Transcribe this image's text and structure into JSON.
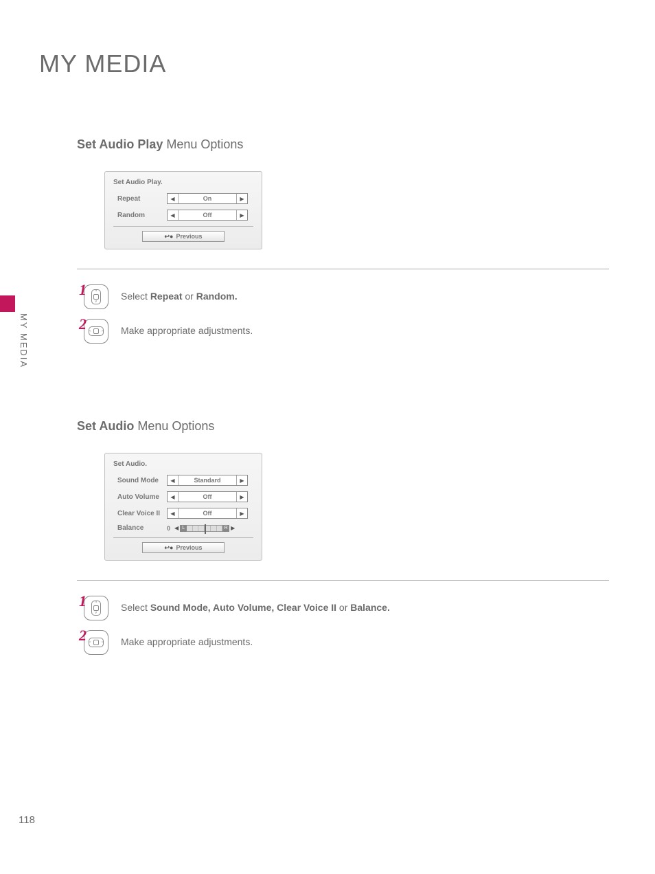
{
  "page": {
    "title": "MY MEDIA",
    "side_label": "MY MEDIA",
    "number": "118"
  },
  "colors": {
    "accent": "#c2185b",
    "text": "#6b6b6b",
    "panel_border": "#bfbfbf"
  },
  "section1": {
    "heading_bold": "Set Audio Play",
    "heading_rest": " Menu Options",
    "panel": {
      "title": "Set Audio Play.",
      "rows": [
        {
          "label": "Repeat",
          "value": "On"
        },
        {
          "label": "Random",
          "value": "Off"
        }
      ],
      "previous": "Previous"
    },
    "steps": {
      "s1_num": "1",
      "s1_pre": "Select ",
      "s1_b1": "Repeat",
      "s1_mid": " or ",
      "s1_b2": "Random.",
      "s2_num": "2",
      "s2_text": "Make appropriate adjustments."
    }
  },
  "section2": {
    "heading_bold": "Set Audio",
    "heading_rest": " Menu Options",
    "panel": {
      "title": "Set Audio.",
      "rows": [
        {
          "label": "Sound Mode",
          "value": "Standard"
        },
        {
          "label": "Auto Volume",
          "value": "Off"
        },
        {
          "label": "Clear Voice II",
          "value": "Off"
        }
      ],
      "balance": {
        "label": "Balance",
        "value": "0",
        "left": "L",
        "right": "R"
      },
      "previous": "Previous"
    },
    "steps": {
      "s1_num": "1",
      "s1_pre": "Select ",
      "s1_b1": "Sound Mode, Auto Volume, Clear Voice II",
      "s1_mid": " or ",
      "s1_b2": "Balance.",
      "s2_num": "2",
      "s2_text": "Make appropriate adjustments."
    }
  }
}
